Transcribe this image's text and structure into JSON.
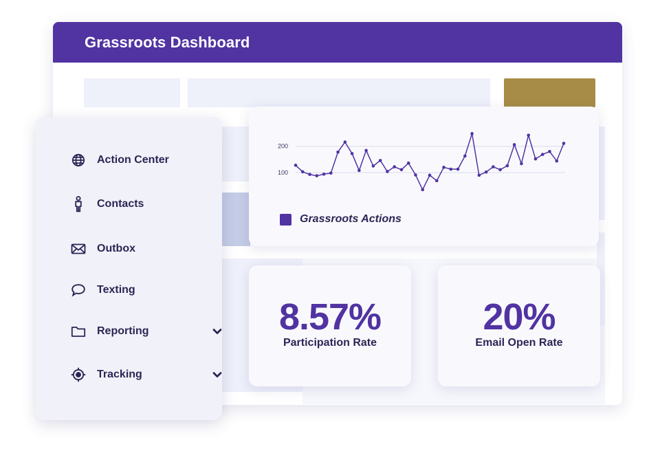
{
  "header": {
    "title": "Grassroots Dashboard"
  },
  "colors": {
    "brand": "#5133a2",
    "accent": "#a68c46",
    "text": "#2b2555"
  },
  "sidebar": {
    "items": [
      {
        "label": "Action Center",
        "icon": "globe-icon",
        "has_chevron": false
      },
      {
        "label": "Contacts",
        "icon": "person-icon",
        "has_chevron": false
      },
      {
        "label": "Outbox",
        "icon": "envelope-icon",
        "has_chevron": false
      },
      {
        "label": "Texting",
        "icon": "speech-bubble-icon",
        "has_chevron": false
      },
      {
        "label": "Reporting",
        "icon": "folder-icon",
        "has_chevron": true
      },
      {
        "label": "Tracking",
        "icon": "crosshair-icon",
        "has_chevron": true
      }
    ]
  },
  "chart_data": {
    "type": "line",
    "title": "",
    "xlabel": "",
    "ylabel": "",
    "y_ticks": [
      "100",
      "200"
    ],
    "ylim": [
      0,
      260
    ],
    "grid": true,
    "legend_position": "bottom-left",
    "series": [
      {
        "name": "Grassroots Actions",
        "color": "#5133a2",
        "values": [
          128,
          103,
          93,
          88,
          94,
          98,
          178,
          216,
          172,
          108,
          184,
          125,
          146,
          104,
          122,
          111,
          136,
          91,
          35,
          90,
          69,
          120,
          113,
          113,
          163,
          248,
          90,
          102,
          122,
          111,
          126,
          206,
          134,
          242,
          152,
          169,
          180,
          144,
          211
        ]
      }
    ]
  },
  "stats": {
    "participation": {
      "value": "8.57%",
      "label": "Participation Rate"
    },
    "email_open": {
      "value": "20%",
      "label": "Email Open Rate"
    }
  }
}
